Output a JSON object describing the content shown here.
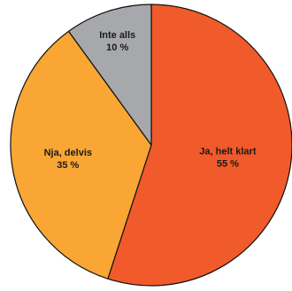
{
  "chart_data": {
    "type": "pie",
    "title": "",
    "slices": [
      {
        "label": "Ja, helt klart",
        "value": 55,
        "value_label": "55 %",
        "color": "#f15a2b"
      },
      {
        "label": "Nja, delvis",
        "value": 35,
        "value_label": "35 %",
        "color": "#faa634"
      },
      {
        "label": "Inte alls",
        "value": 10,
        "value_label": "10 %",
        "color": "#a7a8ab"
      }
    ],
    "start": "12 o'clock",
    "direction": "clockwise",
    "legend": "none",
    "labels": "inside slices"
  }
}
